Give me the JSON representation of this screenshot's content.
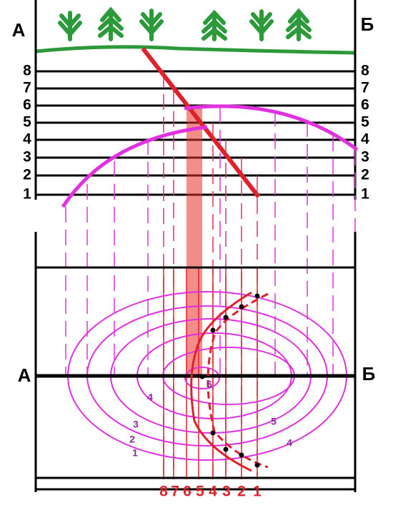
{
  "section": {
    "left_label": "А",
    "right_label": "Б",
    "levels_left": [
      "8",
      "7",
      "6",
      "5",
      "4",
      "3",
      "2",
      "1"
    ],
    "levels_right": [
      "8",
      "7",
      "6",
      "5",
      "4",
      "3",
      "2",
      "1"
    ]
  },
  "map": {
    "left_label": "А",
    "right_label": "Б",
    "contour_labels": [
      "1",
      "2",
      "3",
      "4",
      "4",
      "5",
      "6"
    ],
    "bottom_numbers": [
      "8",
      "7",
      "6",
      "5",
      "4",
      "3",
      "2",
      "1"
    ]
  }
}
